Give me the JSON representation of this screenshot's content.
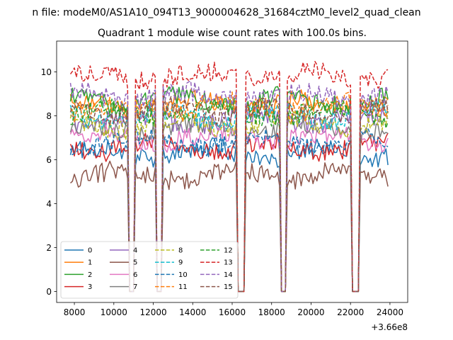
{
  "chart_data": {
    "type": "line",
    "suptitle": "n file: modeM0/AS1A10_094T13_9000004628_31684cztM0_level2_quad_clean",
    "title": "Quadrant 1 module wise count rates with 100.0s bins.",
    "xlabel": "",
    "ylabel": "",
    "x_offset_label": "+3.66e8",
    "xlim": [
      7100,
      24900
    ],
    "ylim": [
      -0.5,
      11.4
    ],
    "x_ticks": [
      8000,
      10000,
      12000,
      14000,
      16000,
      18000,
      20000,
      22000,
      24000
    ],
    "x_tick_labels": [
      "8000",
      "10000",
      "12000",
      "14000",
      "16000",
      "18000",
      "20000",
      "22000",
      "24000"
    ],
    "y_ticks": [
      0,
      2,
      4,
      6,
      8,
      10
    ],
    "y_tick_labels": [
      "0",
      "2",
      "4",
      "6",
      "8",
      "10"
    ],
    "x_start": 7800,
    "x_end": 23900,
    "bin_width": 100,
    "gaps": [
      [
        10750,
        11000
      ],
      [
        12150,
        12450
      ],
      [
        16250,
        16650
      ],
      [
        18500,
        18750
      ],
      [
        22100,
        22450
      ]
    ],
    "series": [
      {
        "name": "0",
        "color": "#1f77b4",
        "dashed": false,
        "level": 6.3
      },
      {
        "name": "1",
        "color": "#ff7f0e",
        "dashed": false,
        "level": 8.5
      },
      {
        "name": "2",
        "color": "#2ca02c",
        "dashed": false,
        "level": 8.7
      },
      {
        "name": "3",
        "color": "#d62728",
        "dashed": false,
        "level": 6.6
      },
      {
        "name": "4",
        "color": "#9467bd",
        "dashed": false,
        "level": 7.8
      },
      {
        "name": "5",
        "color": "#8c564b",
        "dashed": false,
        "level": 5.3
      },
      {
        "name": "6",
        "color": "#e377c2",
        "dashed": false,
        "level": 7.0
      },
      {
        "name": "7",
        "color": "#7f7f7f",
        "dashed": false,
        "level": 7.4
      },
      {
        "name": "8",
        "color": "#bcbd22",
        "dashed": true,
        "level": 7.6
      },
      {
        "name": "9",
        "color": "#17becf",
        "dashed": true,
        "level": 8.0
      },
      {
        "name": "10",
        "color": "#1f77b4",
        "dashed": true,
        "level": 6.8
      },
      {
        "name": "11",
        "color": "#ff7f0e",
        "dashed": true,
        "level": 8.4
      },
      {
        "name": "12",
        "color": "#2ca02c",
        "dashed": true,
        "level": 8.1
      },
      {
        "name": "13",
        "color": "#d62728",
        "dashed": true,
        "level": 9.8
      },
      {
        "name": "14",
        "color": "#9467bd",
        "dashed": true,
        "level": 8.9
      },
      {
        "name": "15",
        "color": "#8c564b",
        "dashed": true,
        "level": 8.2
      }
    ],
    "legend": {
      "location": "lower-left",
      "columns": 4,
      "entries": [
        "0",
        "1",
        "2",
        "3",
        "4",
        "5",
        "6",
        "7",
        "8",
        "9",
        "10",
        "11",
        "12",
        "13",
        "14",
        "15"
      ]
    }
  }
}
